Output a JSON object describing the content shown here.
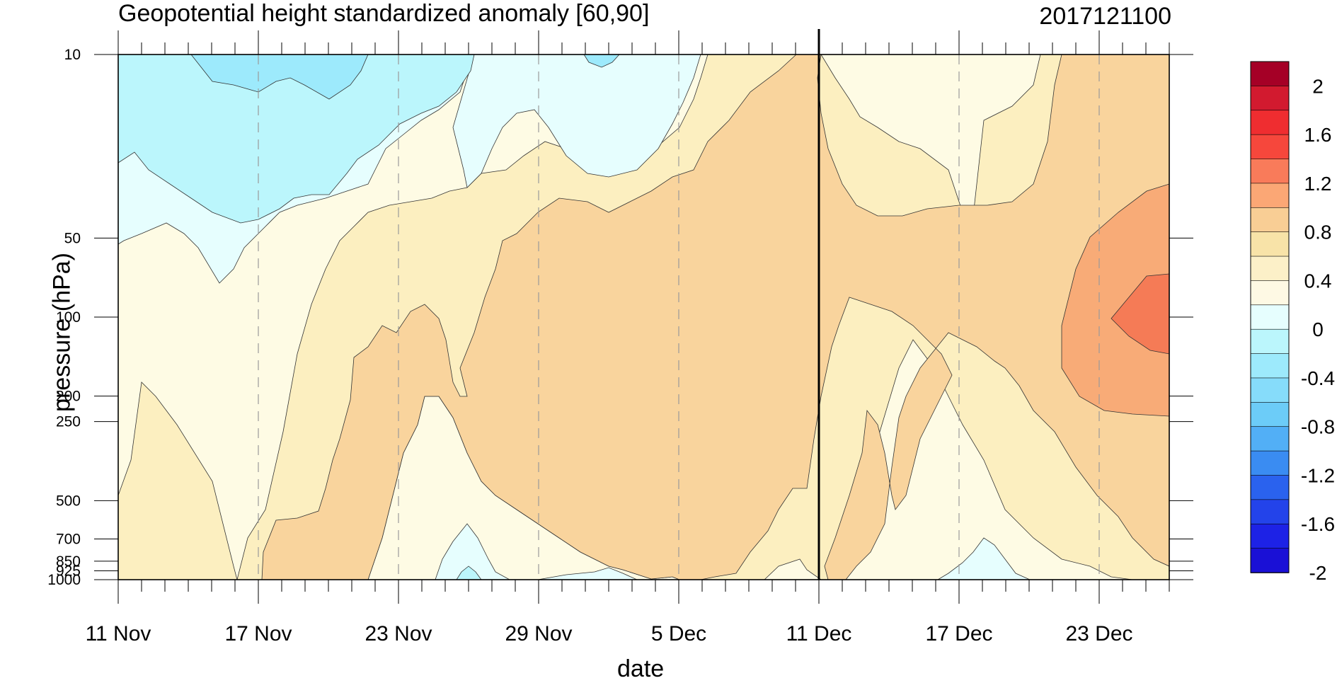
{
  "chart_data": {
    "type": "heatmap",
    "title": "Geopotential height standardized anomaly [60,90]",
    "title_right": "2017121100",
    "xlabel": "date",
    "ylabel": "pressure (hPa)",
    "x_ticks": [
      "11 Nov",
      "17 Nov",
      "23 Nov",
      "29 Nov",
      "5 Dec",
      "11 Dec",
      "17 Dec",
      "23 Dec"
    ],
    "x_range_days_from_11Nov": [
      0,
      45
    ],
    "y_ticks": [
      10,
      50,
      100,
      200,
      250,
      500,
      700,
      850,
      925,
      1000
    ],
    "y_tick_labels": [
      "10",
      "50",
      "100",
      "200",
      "250",
      "500",
      "700",
      "850",
      "925",
      "1000"
    ],
    "y_scale": "log",
    "y_inverted": true,
    "vertical_marker": "11 Dec",
    "colorbar": {
      "labels": [
        "2",
        "1.6",
        "1.2",
        "0.8",
        "0.4",
        "0",
        "-0.4",
        "-0.8",
        "-1.2",
        "-1.6",
        "-2"
      ],
      "colors": [
        "#A50026",
        "#D21A2F",
        "#EF2D30",
        "#F6473C",
        "#F97B5A",
        "#FBA775",
        "#F9CE95",
        "#F8E3A8",
        "#FCF0C8",
        "#FEF9E4",
        "#E6FEFE",
        "#BBF6FC",
        "#9DEAFC",
        "#86DCFA",
        "#6CCCF8",
        "#52AFF6",
        "#3A8CF2",
        "#2A62EE",
        "#2343EA",
        "#1D22E6",
        "#1A10D6"
      ]
    },
    "field_colors": {
      "neg_08": "#9DEAFC",
      "neg_04": "#BBF6FC",
      "neg_00": "#E6FEFE",
      "pos_00": "#FEFBE4",
      "pos_04": "#FCEFC0",
      "pos_08": "#F9D49D",
      "pos_12": "#F8AB77",
      "pos_16": "#F57B56"
    }
  }
}
